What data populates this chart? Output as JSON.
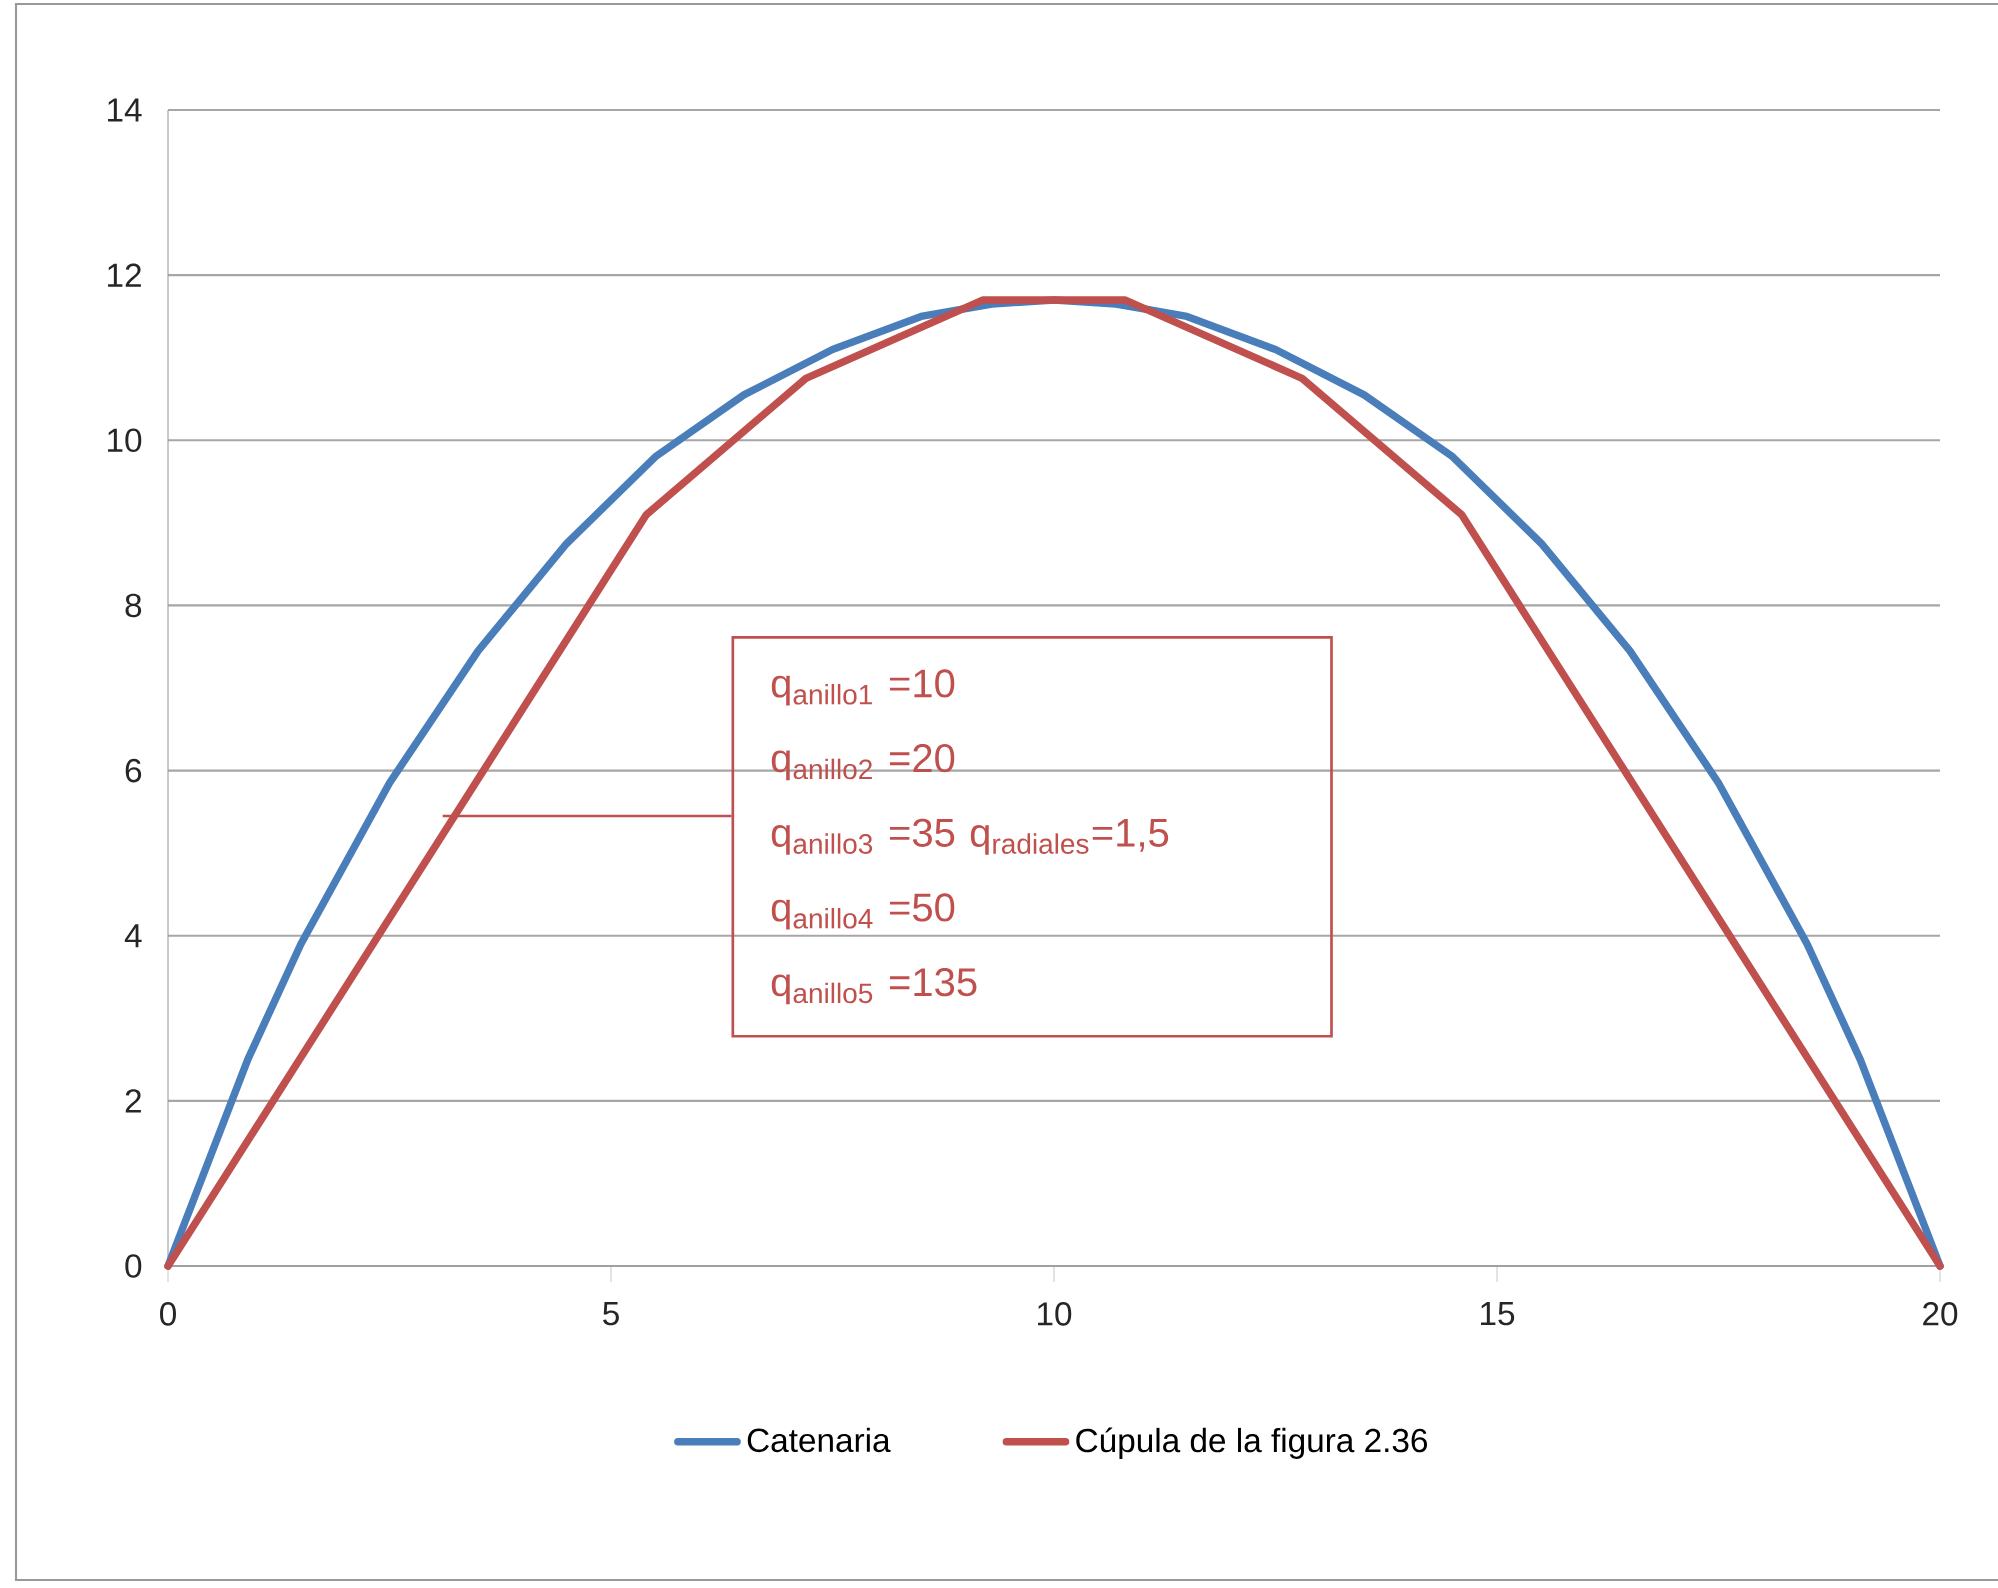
{
  "chart_data": {
    "type": "line",
    "series": [
      {
        "name": "Catenaria",
        "color": "#4a7ebb",
        "x": [
          0,
          0.9,
          1.5,
          2.5,
          3.5,
          4.5,
          5.5,
          6.5,
          7.5,
          8.5,
          9.3,
          10,
          10.7,
          11.5,
          12.5,
          13.5,
          14.5,
          15.5,
          16.5,
          17.5,
          18.5,
          19.1,
          20
        ],
        "values": [
          0,
          2.5,
          3.9,
          5.85,
          7.45,
          8.75,
          9.8,
          10.55,
          11.1,
          11.5,
          11.65,
          11.7,
          11.65,
          11.5,
          11.1,
          10.55,
          9.8,
          8.75,
          7.45,
          5.85,
          3.9,
          2.5,
          0
        ]
      },
      {
        "name": "Cúpula de la figura 2.36",
        "color": "#c0504d",
        "x": [
          0,
          5.4,
          7.2,
          9.2,
          10.8,
          12.8,
          14.6,
          20
        ],
        "values": [
          0,
          9.1,
          10.75,
          11.7,
          11.7,
          10.75,
          9.1,
          0
        ]
      }
    ],
    "xlim": [
      0,
      20
    ],
    "xticks": [
      0,
      5,
      10,
      15,
      20
    ],
    "ylim": [
      0,
      14
    ],
    "yticks": [
      0,
      2,
      4,
      6,
      8,
      10,
      12,
      14
    ],
    "grid": "y",
    "legend": "bottom",
    "marker": "none",
    "line_style": "solid",
    "annotations": [
      "q$_{anillo1}$ =10",
      "q$_{anillo2}$ =20",
      {
        "text": "q$_{anillo3}$ =35  q$_{radiales}$=1,5",
        "x": 3.1,
        "y": 5.45
      },
      "q$_{anillo4}$ =50",
      "q$_{anillo5}$ =135"
    ]
  }
}
